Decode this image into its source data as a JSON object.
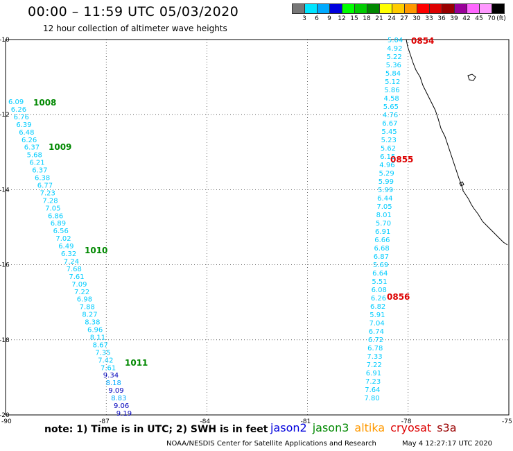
{
  "title": "00:00 – 11:59 UTC 05/03/2020",
  "subtitle": "12 hour collection of altimeter wave heights",
  "legend": {
    "unit": "(ft)",
    "colors": [
      "#777777",
      "#00e5ff",
      "#00aaff",
      "#0000dd",
      "#00ff00",
      "#00cc00",
      "#008800",
      "#ffff00",
      "#ffcc00",
      "#ff9900",
      "#ff0000",
      "#dd0000",
      "#990000",
      "#990099",
      "#ff66ff",
      "#ff99ff",
      "#000000"
    ],
    "labels": [
      "3",
      "6",
      "9",
      "12",
      "15",
      "18",
      "21",
      "24",
      "27",
      "30",
      "33",
      "36",
      "39",
      "42",
      "45",
      "70"
    ]
  },
  "map_data": {
    "lon_range": [
      -90,
      -75
    ],
    "lat_range": [
      -10,
      -20
    ],
    "x_ticks": [
      "-90",
      "-87",
      "-84",
      "-81",
      "-78",
      "-75"
    ],
    "y_ticks": [
      "-10",
      "-12",
      "-14",
      "-16",
      "-18",
      "-20"
    ],
    "track_west": [
      {
        "v": "6.09",
        "c": "#00ccff"
      },
      {
        "v": "6.26",
        "c": "#00ccff"
      },
      {
        "v": "6.76",
        "c": "#00ccff"
      },
      {
        "v": "6.39",
        "c": "#00ccff"
      },
      {
        "v": "6.48",
        "c": "#00ccff"
      },
      {
        "v": "6.26",
        "c": "#00ccff"
      },
      {
        "v": "6.37",
        "c": "#00ccff"
      },
      {
        "v": "5.68",
        "c": "#00ccff"
      },
      {
        "v": "6.21",
        "c": "#00ccff"
      },
      {
        "v": "6.37",
        "c": "#00ccff"
      },
      {
        "v": "6.38",
        "c": "#00ccff"
      },
      {
        "v": "6.77",
        "c": "#00ccff"
      },
      {
        "v": "7.23",
        "c": "#00ccff"
      },
      {
        "v": "7.28",
        "c": "#00ccff"
      },
      {
        "v": "7.05",
        "c": "#00ccff"
      },
      {
        "v": "6.86",
        "c": "#00ccff"
      },
      {
        "v": "6.89",
        "c": "#00ccff"
      },
      {
        "v": "6.56",
        "c": "#00ccff"
      },
      {
        "v": "7.02",
        "c": "#00ccff"
      },
      {
        "v": "6.49",
        "c": "#00ccff"
      },
      {
        "v": "6.32",
        "c": "#00ccff"
      },
      {
        "v": "7.24",
        "c": "#00ccff"
      },
      {
        "v": "7.68",
        "c": "#00ccff"
      },
      {
        "v": "7.61",
        "c": "#00ccff"
      },
      {
        "v": "7.09",
        "c": "#00ccff"
      },
      {
        "v": "7.22",
        "c": "#00ccff"
      },
      {
        "v": "6.98",
        "c": "#00ccff"
      },
      {
        "v": "7.88",
        "c": "#00ccff"
      },
      {
        "v": "8.27",
        "c": "#00ccff"
      },
      {
        "v": "8.38",
        "c": "#00ccff"
      },
      {
        "v": "6.96",
        "c": "#00ccff"
      },
      {
        "v": "8.11",
        "c": "#00ccff"
      },
      {
        "v": "8.67",
        "c": "#00ccff"
      },
      {
        "v": "7.35",
        "c": "#00ccff"
      },
      {
        "v": "7.42",
        "c": "#00ccff"
      },
      {
        "v": "7.61",
        "c": "#00ccff"
      },
      {
        "v": "9.34",
        "c": "#0000bb"
      },
      {
        "v": "8.18",
        "c": "#00aaff"
      },
      {
        "v": "9.09",
        "c": "#0000bb"
      },
      {
        "v": "8.83",
        "c": "#00aaff"
      },
      {
        "v": "9.06",
        "c": "#0000bb"
      },
      {
        "v": "9.19",
        "c": "#0000bb"
      }
    ],
    "track_east": [
      {
        "v": "5.04",
        "c": "#00ccff"
      },
      {
        "v": "4.92",
        "c": "#00ccff"
      },
      {
        "v": "5.22",
        "c": "#00ccff"
      },
      {
        "v": "5.36",
        "c": "#00ccff"
      },
      {
        "v": "5.84",
        "c": "#00ccff"
      },
      {
        "v": "5.12",
        "c": "#00ccff"
      },
      {
        "v": "5.86",
        "c": "#00ccff"
      },
      {
        "v": "4.58",
        "c": "#00ccff"
      },
      {
        "v": "5.65",
        "c": "#00ccff"
      },
      {
        "v": "4.76",
        "c": "#00ccff"
      },
      {
        "v": "6.67",
        "c": "#00ccff"
      },
      {
        "v": "5.45",
        "c": "#00ccff"
      },
      {
        "v": "5.23",
        "c": "#00ccff"
      },
      {
        "v": "5.62",
        "c": "#00ccff"
      },
      {
        "v": "6.15",
        "c": "#00ccff"
      },
      {
        "v": "4.96",
        "c": "#00ccff"
      },
      {
        "v": "5.29",
        "c": "#00ccff"
      },
      {
        "v": "5.99",
        "c": "#00ccff"
      },
      {
        "v": "5.99",
        "c": "#00ccff"
      },
      {
        "v": "6.44",
        "c": "#00ccff"
      },
      {
        "v": "7.05",
        "c": "#00ccff"
      },
      {
        "v": "8.01",
        "c": "#00ccff"
      },
      {
        "v": "5.70",
        "c": "#00ccff"
      },
      {
        "v": "6.91",
        "c": "#00ccff"
      },
      {
        "v": "6.66",
        "c": "#00ccff"
      },
      {
        "v": "6.68",
        "c": "#00ccff"
      },
      {
        "v": "6.87",
        "c": "#00ccff"
      },
      {
        "v": "5.69",
        "c": "#00ccff"
      },
      {
        "v": "6.64",
        "c": "#00ccff"
      },
      {
        "v": "5.51",
        "c": "#00ccff"
      },
      {
        "v": "6.08",
        "c": "#00ccff"
      },
      {
        "v": "6.26",
        "c": "#00ccff"
      },
      {
        "v": "6.82",
        "c": "#00ccff"
      },
      {
        "v": "5.91",
        "c": "#00ccff"
      },
      {
        "v": "7.04",
        "c": "#00ccff"
      },
      {
        "v": "6.74",
        "c": "#00ccff"
      },
      {
        "v": "6.72",
        "c": "#00ccff"
      },
      {
        "v": "6.78",
        "c": "#00ccff"
      },
      {
        "v": "7.33",
        "c": "#00ccff"
      },
      {
        "v": "7.22",
        "c": "#00ccff"
      },
      {
        "v": "6.91",
        "c": "#00ccff"
      },
      {
        "v": "7.23",
        "c": "#00ccff"
      },
      {
        "v": "7.64",
        "c": "#00ccff"
      },
      {
        "v": "7.80",
        "c": "#00ccff"
      }
    ],
    "time_labels_west": [
      {
        "t": "1008",
        "c": "#008800"
      },
      {
        "t": "1009",
        "c": "#008800"
      },
      {
        "t": "1010",
        "c": "#008800"
      },
      {
        "t": "1011",
        "c": "#008800"
      }
    ],
    "time_labels_east": [
      {
        "t": "0854",
        "c": "#dd0000"
      },
      {
        "t": "0855",
        "c": "#dd0000"
      },
      {
        "t": "0856",
        "c": "#dd0000"
      }
    ]
  },
  "note": "note: 1) Time is in UTC; 2) SWH is in feet",
  "satellites": [
    {
      "name": "jason2",
      "color": "#0000dd"
    },
    {
      "name": "jason3",
      "color": "#008800"
    },
    {
      "name": "altika",
      "color": "#ff9900"
    },
    {
      "name": "cryosat",
      "color": "#dd0000"
    },
    {
      "name": "s3a",
      "color": "#990000"
    }
  ],
  "credit": "NOAA/NESDIS Center for Satellite Applications and Research",
  "timestamp": "May  4 12:27:17 UTC 2020"
}
